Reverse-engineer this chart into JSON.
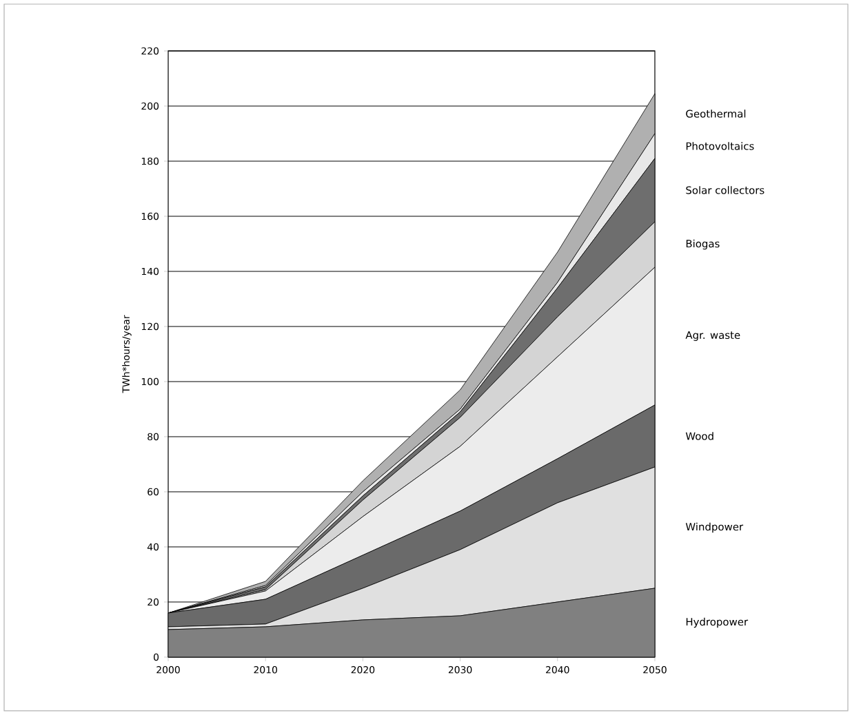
{
  "chart_data": {
    "type": "area",
    "stacked": true,
    "ylabel": "TWh*hours/year",
    "x": [
      2000,
      2010,
      2020,
      2030,
      2040,
      2050
    ],
    "xlim": [
      2000,
      2050
    ],
    "xticks": [
      2000,
      2010,
      2020,
      2030,
      2040,
      2050
    ],
    "ylim": [
      0,
      220
    ],
    "yticks": [
      0,
      20,
      40,
      60,
      80,
      100,
      120,
      140,
      160,
      180,
      200,
      220
    ],
    "grid": "y",
    "legend": false,
    "series": [
      {
        "name": "Hydropower",
        "color": "#808080",
        "values": [
          10,
          11,
          13.5,
          15,
          20,
          25
        ]
      },
      {
        "name": "Windpower",
        "color": "#e0e0e0",
        "values": [
          1,
          1,
          11.5,
          24,
          36,
          44
        ]
      },
      {
        "name": "Wood",
        "color": "#6a6a6a",
        "values": [
          5,
          9,
          12,
          14,
          16,
          22.5
        ]
      },
      {
        "name": "Agr. waste",
        "color": "#ececec",
        "values": [
          0,
          3,
          14,
          23.5,
          37,
          50
        ]
      },
      {
        "name": "Biogas",
        "color": "#d4d4d4",
        "values": [
          0,
          0.5,
          6,
          10.5,
          14.5,
          16.5
        ]
      },
      {
        "name": "Solar collectors",
        "color": "#6e6e6e",
        "values": [
          0,
          1,
          1.5,
          2,
          10.5,
          23
        ]
      },
      {
        "name": "Photovoltaics",
        "color": "#e8e8e8",
        "values": [
          0,
          0.5,
          1.5,
          1,
          2,
          9
        ]
      },
      {
        "name": "Geothermal",
        "color": "#b0b0b0",
        "values": [
          0,
          1.5,
          4,
          7,
          11,
          14.5
        ]
      }
    ]
  }
}
